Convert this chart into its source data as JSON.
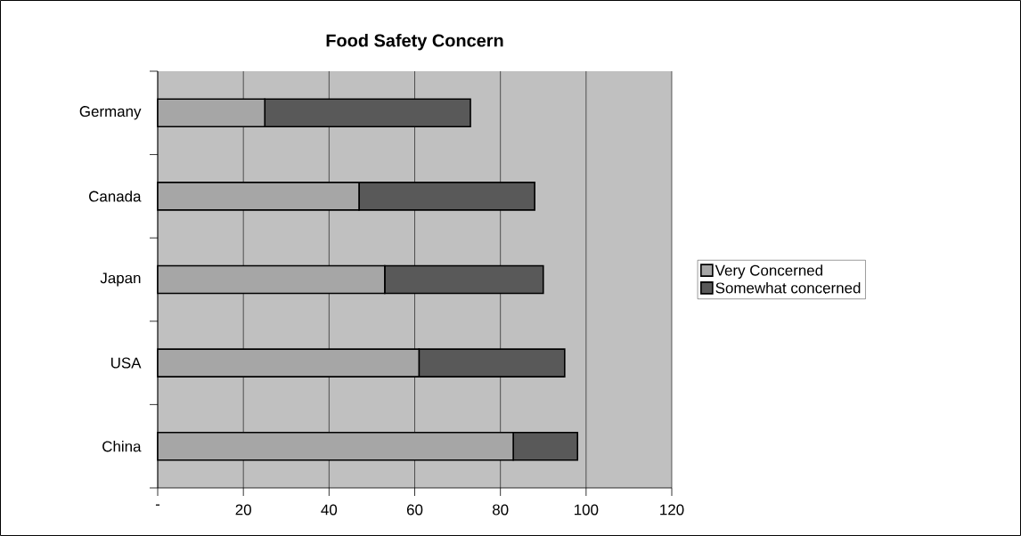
{
  "chart_data": {
    "type": "bar",
    "orientation": "horizontal",
    "stacked": true,
    "title": "Food Safety Concern",
    "categories": [
      "Germany",
      "Canada",
      "Japan",
      "USA",
      "China"
    ],
    "series": [
      {
        "name": "Very Concerned",
        "color": "#a6a6a6",
        "values": [
          25,
          47,
          53,
          61,
          83
        ]
      },
      {
        "name": "Somewhat concerned",
        "color": "#595959",
        "values": [
          48,
          41,
          37,
          34,
          15
        ]
      }
    ],
    "xlim": [
      0,
      120
    ],
    "xticks": [
      {
        "value": 0,
        "label": "-"
      },
      20,
      40,
      60,
      80,
      100,
      120
    ],
    "grid": "x",
    "legend": "right"
  }
}
